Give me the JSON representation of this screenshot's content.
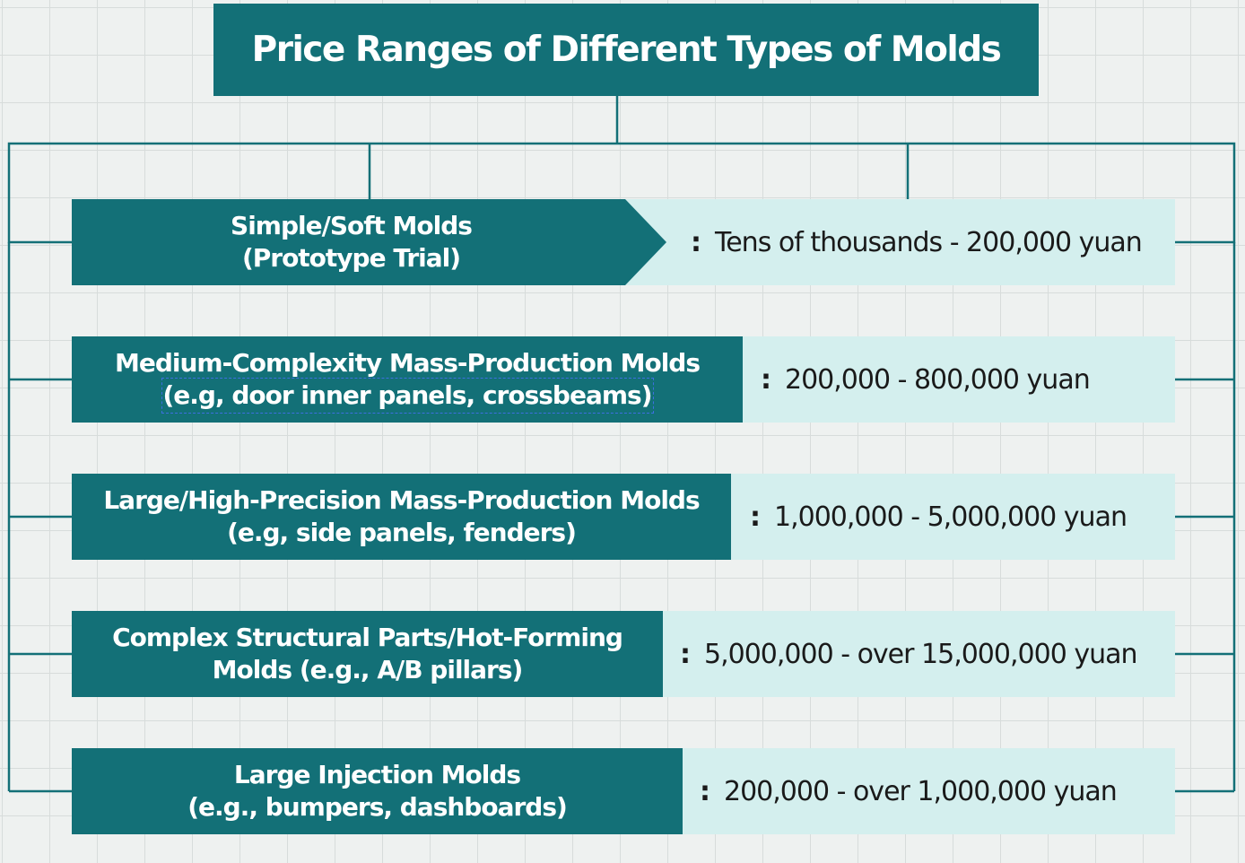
{
  "title": "Price Ranges of Different Types of Molds",
  "separator": ":",
  "rows": [
    {
      "label_line1": "Simple/Soft Molds",
      "label_line2": "(Prototype Trial)",
      "price": "Tens of thousands - 200,000 yuan"
    },
    {
      "label_line1": "Medium-Complexity Mass-Production Molds",
      "label_line2": "(e.g, door inner panels, crossbeams)",
      "price": "200,000 - 800,000 yuan"
    },
    {
      "label_line1": "Large/High-Precision Mass-Production Molds",
      "label_line2": "(e.g, side panels, fenders)",
      "price": "1,000,000 - 5,000,000 yuan"
    },
    {
      "label_line1": "Complex Structural Parts/Hot-Forming",
      "label_line2": "Molds (e.g., A/B pillars)",
      "price": "5,000,000 - over 15,000,000 yuan"
    },
    {
      "label_line1": "Large Injection Molds",
      "label_line2": "(e.g., bumpers, dashboards)",
      "price": "200,000 - over 1,000,000 yuan"
    }
  ],
  "colors": {
    "label_fill": "#137077",
    "price_fill": "#d4efee",
    "connector": "#137077",
    "background": "#eef1f0"
  }
}
